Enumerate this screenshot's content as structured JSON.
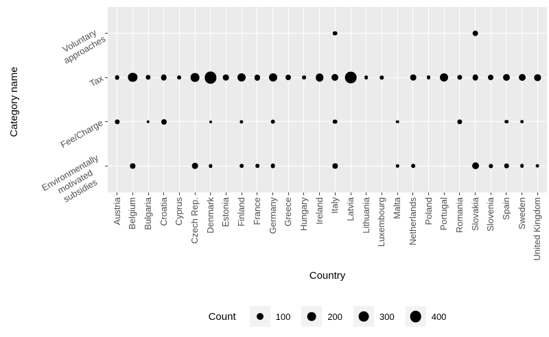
{
  "colors": {
    "panel_bg": "#EBEBEB",
    "grid": "#FFFFFF",
    "dot": "#000000",
    "axis_text": "#4D4D4D",
    "title_text": "#000000",
    "legend_key_bg": "#F2F2F2",
    "tick": "#333333"
  },
  "chart_data": {
    "type": "scatter",
    "subtype": "bubble",
    "xlabel": "Country",
    "ylabel": "Category name",
    "grid": "major-only, white on grey panel",
    "legend": {
      "title": "Count",
      "values": [
        100,
        200,
        300,
        400
      ],
      "position": "bottom"
    },
    "size_scale": "diameter_px = 3.3 + 0.67 * sqrt(count)",
    "categories": [
      {
        "name": "Voluntary approaches",
        "display": "Voluntary\napproaches"
      },
      {
        "name": "Tax",
        "display": "Tax"
      },
      {
        "name": "Fee/Charge",
        "display": "Fee/Charge"
      },
      {
        "name": "Environmentally motivated subsidies",
        "display": "Environmentally\nmotivated\nsubsidies"
      }
    ],
    "countries": [
      "Austria",
      "Belgium",
      "Bulgaria",
      "Croatia",
      "Cyprus",
      "Czech Rep.",
      "Denmark",
      "Estonia",
      "Finland",
      "France",
      "Germany",
      "Greece",
      "Hungary",
      "Ireland",
      "Italy",
      "Latvia",
      "Lithuania",
      "Luxembourg",
      "Malta",
      "Netherlands",
      "Poland",
      "Portugal",
      "Romania",
      "Slovakia",
      "Slovenia",
      "Spain",
      "Sweden",
      "United Kingdom"
    ],
    "points": [
      {
        "category": "Voluntary approaches",
        "country": "Italy",
        "count": 25
      },
      {
        "category": "Voluntary approaches",
        "country": "Slovakia",
        "count": 65
      },
      {
        "category": "Tax",
        "country": "Austria",
        "count": 25
      },
      {
        "category": "Tax",
        "country": "Belgium",
        "count": 220
      },
      {
        "category": "Tax",
        "country": "Bulgaria",
        "count": 35
      },
      {
        "category": "Tax",
        "country": "Croatia",
        "count": 65
      },
      {
        "category": "Tax",
        "country": "Cyprus",
        "count": 15
      },
      {
        "category": "Tax",
        "country": "Czech Rep.",
        "count": 200
      },
      {
        "category": "Tax",
        "country": "Denmark",
        "count": 440
      },
      {
        "category": "Tax",
        "country": "Estonia",
        "count": 65
      },
      {
        "category": "Tax",
        "country": "Finland",
        "count": 170
      },
      {
        "category": "Tax",
        "country": "France",
        "count": 55
      },
      {
        "category": "Tax",
        "country": "Germany",
        "count": 170
      },
      {
        "category": "Tax",
        "country": "Greece",
        "count": 50
      },
      {
        "category": "Tax",
        "country": "Hungary",
        "count": 15
      },
      {
        "category": "Tax",
        "country": "Ireland",
        "count": 150
      },
      {
        "category": "Tax",
        "country": "Italy",
        "count": 100
      },
      {
        "category": "Tax",
        "country": "Latvia",
        "count": 400
      },
      {
        "category": "Tax",
        "country": "Lithuania",
        "count": 13
      },
      {
        "category": "Tax",
        "country": "Luxembourg",
        "count": 10
      },
      {
        "category": "Tax",
        "country": "Netherlands",
        "count": 65
      },
      {
        "category": "Tax",
        "country": "Poland",
        "count": 15
      },
      {
        "category": "Tax",
        "country": "Portugal",
        "count": 170
      },
      {
        "category": "Tax",
        "country": "Romania",
        "count": 35
      },
      {
        "category": "Tax",
        "country": "Slovakia",
        "count": 65
      },
      {
        "category": "Tax",
        "country": "Slovenia",
        "count": 50
      },
      {
        "category": "Tax",
        "country": "Spain",
        "count": 100
      },
      {
        "category": "Tax",
        "country": "Sweden",
        "count": 100
      },
      {
        "category": "Tax",
        "country": "United Kingdom",
        "count": 80
      },
      {
        "category": "Fee/Charge",
        "country": "Austria",
        "count": 35
      },
      {
        "category": "Fee/Charge",
        "country": "Bulgaria",
        "count": 3
      },
      {
        "category": "Fee/Charge",
        "country": "Croatia",
        "count": 50
      },
      {
        "category": "Fee/Charge",
        "country": "Denmark",
        "count": 1
      },
      {
        "category": "Fee/Charge",
        "country": "Finland",
        "count": 9
      },
      {
        "category": "Fee/Charge",
        "country": "Germany",
        "count": 25
      },
      {
        "category": "Fee/Charge",
        "country": "Italy",
        "count": 25
      },
      {
        "category": "Fee/Charge",
        "country": "Malta",
        "count": 4
      },
      {
        "category": "Fee/Charge",
        "country": "Romania",
        "count": 35
      },
      {
        "category": "Fee/Charge",
        "country": "Spain",
        "count": 13
      },
      {
        "category": "Fee/Charge",
        "country": "Sweden",
        "count": 13
      },
      {
        "category": "Environmentally motivated subsidies",
        "country": "Belgium",
        "count": 35
      },
      {
        "category": "Environmentally motivated subsidies",
        "country": "Czech Rep.",
        "count": 65
      },
      {
        "category": "Environmentally motivated subsidies",
        "country": "Denmark",
        "count": 9
      },
      {
        "category": "Environmentally motivated subsidies",
        "country": "Finland",
        "count": 13
      },
      {
        "category": "Environmentally motivated subsidies",
        "country": "France",
        "count": 13
      },
      {
        "category": "Environmentally motivated subsidies",
        "country": "Germany",
        "count": 25
      },
      {
        "category": "Environmentally motivated subsidies",
        "country": "Italy",
        "count": 35
      },
      {
        "category": "Environmentally motivated subsidies",
        "country": "Malta",
        "count": 3
      },
      {
        "category": "Environmentally motivated subsidies",
        "country": "Netherlands",
        "count": 13
      },
      {
        "category": "Environmentally motivated subsidies",
        "country": "Slovakia",
        "count": 100
      },
      {
        "category": "Environmentally motivated subsidies",
        "country": "Slovenia",
        "count": 9
      },
      {
        "category": "Environmentally motivated subsidies",
        "country": "Spain",
        "count": 25
      },
      {
        "category": "Environmentally motivated subsidies",
        "country": "Sweden",
        "count": 13
      },
      {
        "category": "Environmentally motivated subsidies",
        "country": "United Kingdom",
        "count": 5
      }
    ]
  }
}
